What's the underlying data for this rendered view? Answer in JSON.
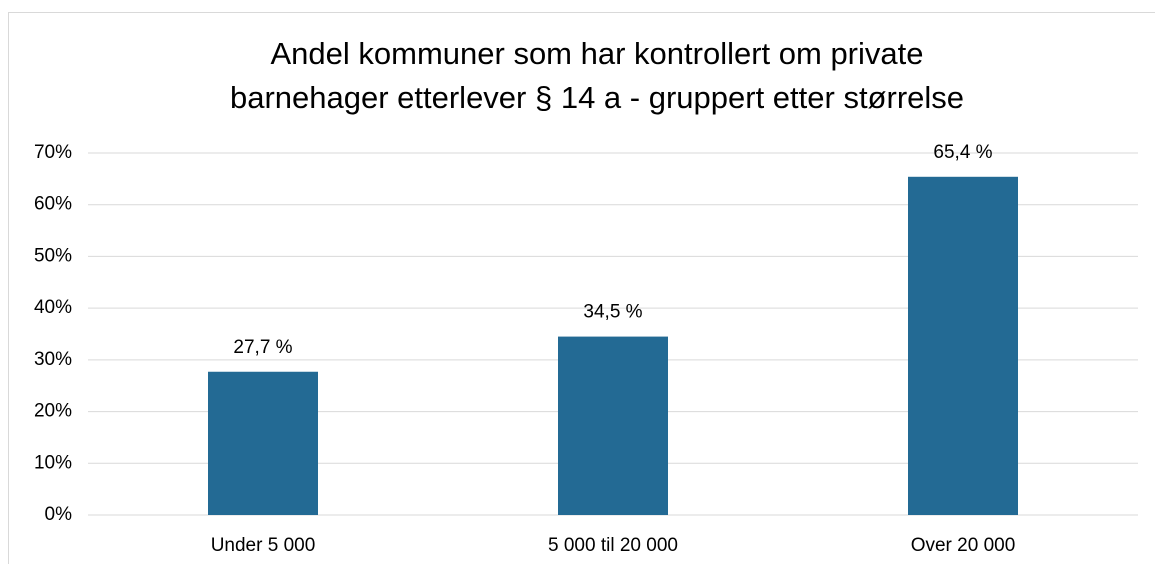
{
  "chart_data": {
    "type": "bar",
    "title": [
      "Andel kommuner som har kontrollert om private",
      "barnehager etterlever § 14 a - gruppert etter størrelse"
    ],
    "categories": [
      "Under 5 000",
      "5 000 til 20 000",
      "Over 20 000"
    ],
    "values": [
      27.7,
      34.5,
      65.4
    ],
    "value_labels": [
      "27,7 %",
      "34,5 %",
      "65,4 %"
    ],
    "color": "#236a94",
    "ylim": [
      0,
      70
    ],
    "yticks": [
      {
        "value": 0,
        "label": "0%"
      },
      {
        "value": 10,
        "label": "10%"
      },
      {
        "value": 20,
        "label": "20%"
      },
      {
        "value": 30,
        "label": "30%"
      },
      {
        "value": 40,
        "label": "40%"
      },
      {
        "value": 50,
        "label": "50%"
      },
      {
        "value": 60,
        "label": "60%"
      },
      {
        "value": 70,
        "label": "70%"
      }
    ],
    "grid": true
  }
}
